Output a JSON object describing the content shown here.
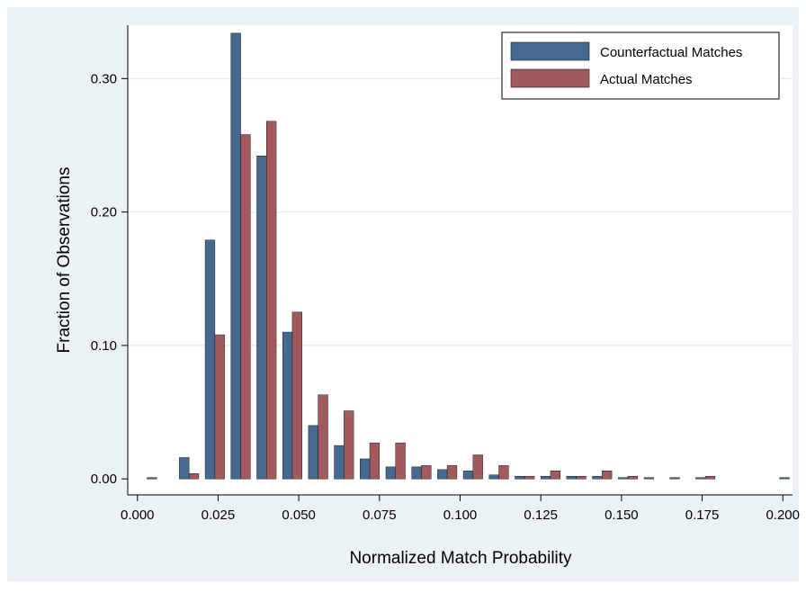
{
  "chart_data": {
    "type": "bar",
    "title": "",
    "xlabel": "Normalized Match Probability",
    "ylabel": "Fraction of Observations",
    "xlim": [
      -0.003,
      0.203
    ],
    "ylim": [
      -0.012,
      0.34
    ],
    "x_ticks": [
      0.0,
      0.025,
      0.05,
      0.075,
      0.1,
      0.125,
      0.15,
      0.175,
      0.2
    ],
    "x_tick_labels": [
      "0.000",
      "0.025",
      "0.050",
      "0.075",
      "0.100",
      "0.125",
      "0.150",
      "0.175",
      "0.200"
    ],
    "y_ticks": [
      0.0,
      0.1,
      0.2,
      0.3
    ],
    "y_tick_labels": [
      "0.00",
      "0.10",
      "0.20",
      "0.30"
    ],
    "grid": true,
    "legend_position": "top-right",
    "bar_width": 0.003,
    "series": [
      {
        "name": "Counterfactual Matches",
        "color": "#466a8f",
        "x": [
          0.0045,
          0.0145,
          0.0225,
          0.0305,
          0.0385,
          0.0465,
          0.0545,
          0.0625,
          0.0705,
          0.0785,
          0.0865,
          0.0945,
          0.1025,
          0.1105,
          0.1185,
          0.1265,
          0.1345,
          0.1425,
          0.1505,
          0.1585,
          0.1665,
          0.1745,
          0.2005
        ],
        "values": [
          0.001,
          0.016,
          0.179,
          0.334,
          0.242,
          0.11,
          0.04,
          0.025,
          0.015,
          0.009,
          0.009,
          0.007,
          0.006,
          0.003,
          0.002,
          0.002,
          0.002,
          0.002,
          0.001,
          0.001,
          0.001,
          0.001,
          0.001
        ]
      },
      {
        "name": "Actual Matches",
        "color": "#a35a5f",
        "x": [
          0.0175,
          0.0255,
          0.0335,
          0.0415,
          0.0495,
          0.0575,
          0.0655,
          0.0735,
          0.0815,
          0.0895,
          0.0975,
          0.1055,
          0.1135,
          0.1215,
          0.1295,
          0.1375,
          0.1455,
          0.1535,
          0.1775
        ],
        "values": [
          0.004,
          0.108,
          0.258,
          0.268,
          0.125,
          0.063,
          0.051,
          0.027,
          0.027,
          0.01,
          0.01,
          0.018,
          0.01,
          0.002,
          0.006,
          0.002,
          0.006,
          0.002,
          0.002
        ]
      }
    ]
  }
}
